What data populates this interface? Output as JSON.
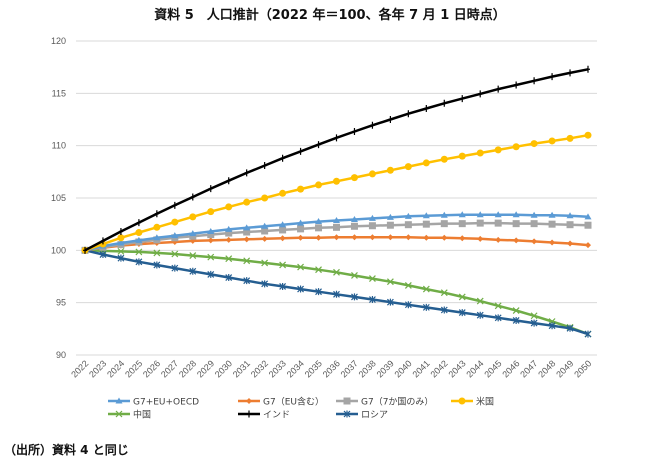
{
  "title": "資料 5　人口推計（2022 年＝100、各年 7 月 1 日時点）",
  "source": "（出所）資料 4 と同じ",
  "chart_data": {
    "type": "line",
    "title": "資料 5　人口推計（2022 年＝100、各年 7 月 1 日時点）",
    "xlabel": "",
    "ylabel": "",
    "ylim": [
      90,
      120
    ],
    "yticks": [
      90,
      95,
      100,
      105,
      110,
      115,
      120
    ],
    "grid": true,
    "legend_position": "bottom",
    "x": [
      "2022",
      "2023",
      "2024",
      "2025",
      "2026",
      "2027",
      "2028",
      "2029",
      "2030",
      "2031",
      "2032",
      "2033",
      "2034",
      "2035",
      "2036",
      "2037",
      "2038",
      "2039",
      "2040",
      "2041",
      "2042",
      "2043",
      "2044",
      "2045",
      "2046",
      "2047",
      "2048",
      "2049",
      "2050"
    ],
    "series": [
      {
        "name": "G7+EU+OECD",
        "color": "#5B9BD5",
        "marker": "triangle",
        "values": [
          100.0,
          100.4,
          100.7,
          100.95,
          101.2,
          101.4,
          101.6,
          101.8,
          102.0,
          102.15,
          102.3,
          102.45,
          102.6,
          102.75,
          102.85,
          102.95,
          103.05,
          103.15,
          103.25,
          103.3,
          103.35,
          103.4,
          103.4,
          103.4,
          103.4,
          103.35,
          103.35,
          103.3,
          103.2
        ]
      },
      {
        "name": "G7（EU含む）",
        "color": "#ED7D31",
        "marker": "diamond",
        "values": [
          100.0,
          100.25,
          100.45,
          100.6,
          100.7,
          100.8,
          100.9,
          100.95,
          101.0,
          101.05,
          101.1,
          101.15,
          101.2,
          101.2,
          101.25,
          101.25,
          101.25,
          101.25,
          101.25,
          101.2,
          101.2,
          101.15,
          101.1,
          101.0,
          100.95,
          100.85,
          100.75,
          100.65,
          100.5
        ]
      },
      {
        "name": "G7（7か国のみ）",
        "color": "#A5A5A5",
        "marker": "square",
        "values": [
          100.0,
          100.3,
          100.55,
          100.8,
          101.0,
          101.2,
          101.35,
          101.5,
          101.65,
          101.75,
          101.85,
          101.95,
          102.05,
          102.15,
          102.2,
          102.3,
          102.35,
          102.4,
          102.45,
          102.5,
          102.55,
          102.55,
          102.6,
          102.6,
          102.55,
          102.55,
          102.5,
          102.45,
          102.4
        ]
      },
      {
        "name": "米国",
        "color": "#FFC000",
        "marker": "circle",
        "values": [
          100.0,
          100.6,
          101.2,
          101.7,
          102.2,
          102.7,
          103.2,
          103.7,
          104.15,
          104.6,
          105.0,
          105.45,
          105.85,
          106.25,
          106.6,
          106.95,
          107.3,
          107.65,
          108.0,
          108.35,
          108.7,
          109.0,
          109.3,
          109.6,
          109.9,
          110.2,
          110.45,
          110.7,
          111.0
        ]
      },
      {
        "name": "中国",
        "color": "#70AD47",
        "marker": "x",
        "values": [
          100.0,
          99.95,
          99.9,
          99.85,
          99.75,
          99.65,
          99.5,
          99.35,
          99.2,
          99.0,
          98.8,
          98.6,
          98.4,
          98.15,
          97.9,
          97.6,
          97.3,
          97.0,
          96.65,
          96.3,
          95.95,
          95.55,
          95.15,
          94.7,
          94.25,
          93.75,
          93.2,
          92.65,
          92.0
        ]
      },
      {
        "name": "インド",
        "color": "#000000",
        "marker": "plus",
        "values": [
          100.0,
          100.9,
          101.8,
          102.65,
          103.5,
          104.3,
          105.1,
          105.9,
          106.65,
          107.4,
          108.1,
          108.8,
          109.45,
          110.1,
          110.75,
          111.35,
          111.95,
          112.5,
          113.05,
          113.55,
          114.05,
          114.5,
          114.95,
          115.4,
          115.8,
          116.2,
          116.6,
          116.95,
          117.3
        ]
      },
      {
        "name": "ロシア",
        "color": "#255E91",
        "marker": "star",
        "values": [
          100.0,
          99.6,
          99.25,
          98.9,
          98.6,
          98.3,
          98.0,
          97.7,
          97.4,
          97.1,
          96.8,
          96.55,
          96.3,
          96.05,
          95.8,
          95.55,
          95.3,
          95.05,
          94.8,
          94.55,
          94.3,
          94.05,
          93.8,
          93.55,
          93.3,
          93.05,
          92.8,
          92.55,
          92.0
        ]
      }
    ]
  }
}
